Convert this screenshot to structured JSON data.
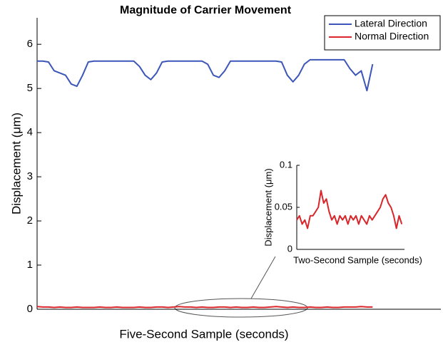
{
  "chart_data": [
    {
      "type": "line",
      "title": "Magnitude of Carrier Movement",
      "xlabel": "Five-Second Sample (seconds)",
      "ylabel": "Displacement (μm)",
      "x": [
        0,
        1,
        2,
        3,
        4,
        5,
        6,
        7,
        8,
        9,
        10,
        11,
        12,
        13,
        14,
        15,
        16,
        17,
        18,
        19,
        20,
        21,
        22,
        23,
        24,
        25,
        26,
        27,
        28,
        29,
        30,
        31,
        32,
        33,
        34,
        35,
        36,
        37,
        38,
        39,
        40,
        41,
        42,
        43,
        44,
        45,
        46,
        47,
        48,
        49,
        50,
        51,
        52,
        53,
        54,
        55,
        56,
        57,
        58,
        59
      ],
      "xlim": [
        0,
        71
      ],
      "ylim": [
        0,
        6.6
      ],
      "yticks": [
        0,
        1,
        2,
        3,
        4,
        5,
        6
      ],
      "legend": "northeast",
      "grid": false,
      "series": [
        {
          "name": "Lateral Direction",
          "color": "#3b56b8",
          "values": [
            5.62,
            5.62,
            5.6,
            5.4,
            5.35,
            5.3,
            5.1,
            5.05,
            5.3,
            5.6,
            5.62,
            5.62,
            5.62,
            5.62,
            5.62,
            5.62,
            5.62,
            5.62,
            5.5,
            5.3,
            5.2,
            5.35,
            5.6,
            5.62,
            5.62,
            5.62,
            5.62,
            5.62,
            5.62,
            5.62,
            5.55,
            5.3,
            5.25,
            5.4,
            5.62,
            5.62,
            5.62,
            5.62,
            5.62,
            5.62,
            5.62,
            5.62,
            5.62,
            5.6,
            5.3,
            5.15,
            5.3,
            5.55,
            5.65,
            5.65,
            5.65,
            5.65,
            5.65,
            5.65,
            5.65,
            5.45,
            5.3,
            5.4,
            4.95,
            5.55
          ]
        },
        {
          "name": "Normal Direction",
          "color": "#d9262b",
          "values": [
            0.06,
            0.05,
            0.05,
            0.04,
            0.05,
            0.04,
            0.04,
            0.05,
            0.04,
            0.04,
            0.04,
            0.05,
            0.04,
            0.04,
            0.05,
            0.04,
            0.04,
            0.04,
            0.05,
            0.04,
            0.04,
            0.05,
            0.05,
            0.04,
            0.05,
            0.06,
            0.05,
            0.05,
            0.04,
            0.05,
            0.04,
            0.04,
            0.05,
            0.05,
            0.04,
            0.05,
            0.04,
            0.04,
            0.05,
            0.04,
            0.04,
            0.05,
            0.06,
            0.05,
            0.04,
            0.05,
            0.04,
            0.04,
            0.05,
            0.04,
            0.04,
            0.05,
            0.04,
            0.04,
            0.05,
            0.05,
            0.05,
            0.06,
            0.05,
            0.05
          ]
        }
      ]
    },
    {
      "type": "line",
      "xlabel": "Two-Second Sample (seconds)",
      "ylabel": "Displacement (μm)",
      "x": [
        0,
        1,
        2,
        3,
        4,
        5,
        6,
        7,
        8,
        9,
        10,
        11,
        12,
        13,
        14,
        15,
        16,
        17,
        18,
        19,
        20,
        21,
        22,
        23,
        24,
        25,
        26,
        27,
        28,
        29,
        30,
        31,
        32,
        33,
        34,
        35,
        36,
        37,
        38,
        39
      ],
      "xlim": [
        0,
        40
      ],
      "ylim": [
        0,
        0.1
      ],
      "yticks": [
        0,
        0.05,
        0.1
      ],
      "grid": false,
      "series": [
        {
          "color": "#d9262b",
          "values": [
            0.035,
            0.04,
            0.03,
            0.035,
            0.025,
            0.04,
            0.04,
            0.045,
            0.05,
            0.07,
            0.055,
            0.06,
            0.045,
            0.035,
            0.04,
            0.03,
            0.04,
            0.035,
            0.04,
            0.03,
            0.04,
            0.035,
            0.04,
            0.03,
            0.04,
            0.035,
            0.03,
            0.04,
            0.035,
            0.04,
            0.045,
            0.05,
            0.06,
            0.065,
            0.055,
            0.05,
            0.04,
            0.025,
            0.04,
            0.03
          ]
        }
      ]
    }
  ]
}
